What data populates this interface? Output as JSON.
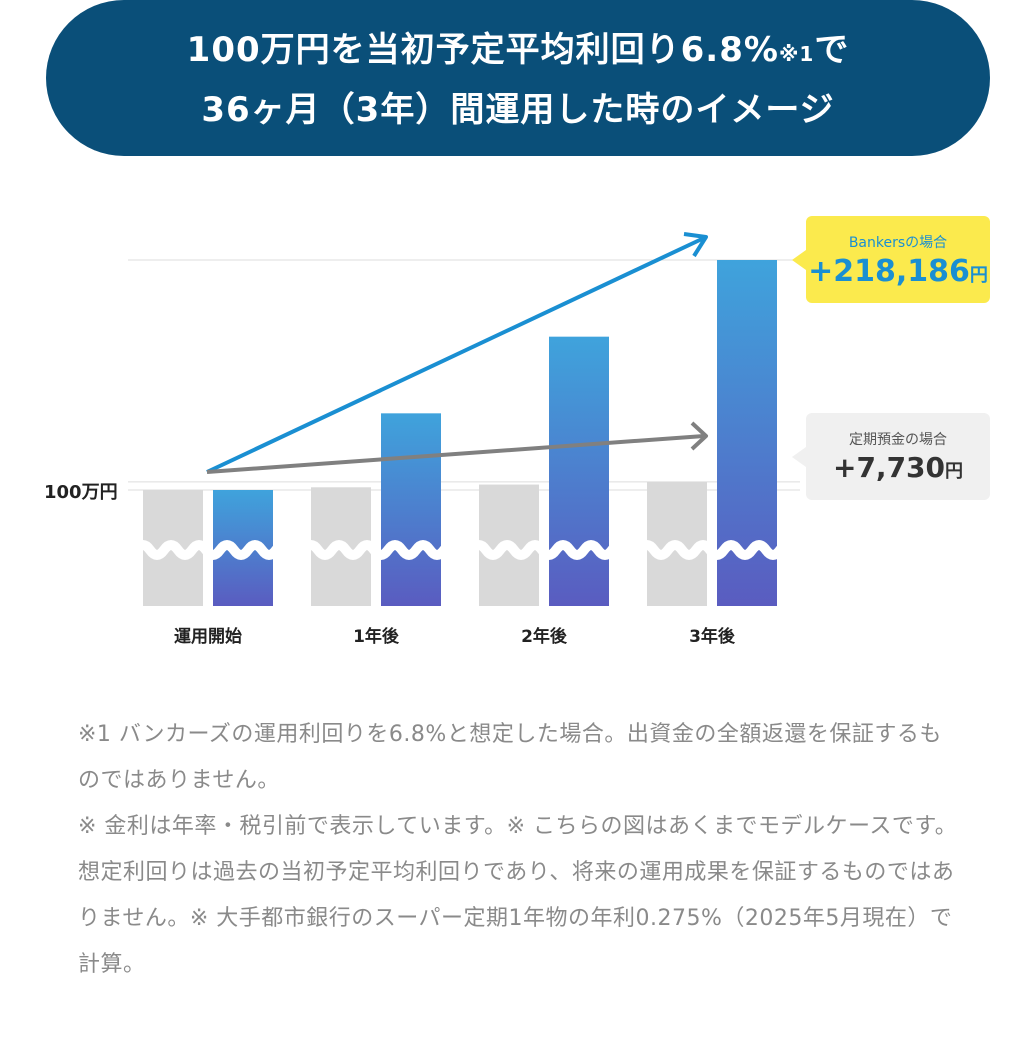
{
  "header": {
    "line1": "100万円を当初予定平均利回り6.8%",
    "line1_note": "※1",
    "line1_end": "で",
    "line2": "36ヶ月（3年）間運用した時のイメージ"
  },
  "chart_data": {
    "type": "bar",
    "categories": [
      "運用開始",
      "1年後",
      "2年後",
      "3年後"
    ],
    "series": [
      {
        "name": "定期預金",
        "values": [
          1000000,
          1002577,
          1005154,
          1007730
        ]
      },
      {
        "name": "Bankers",
        "values": [
          1000000,
          1072729,
          1145457,
          1218186
        ]
      }
    ],
    "y_reference_label": "100万円",
    "y_reference_value": 1000000,
    "axis_break": true,
    "colors": {
      "bankers_top": "#3fa3dc",
      "bankers_bottom": "#5a5cc0",
      "teiki": "#d9d9d9",
      "bankers_arrow": "#1a8fd2",
      "teiki_arrow": "#808080",
      "gridline": "#dddddd"
    }
  },
  "callouts": {
    "bankers": {
      "label": "Bankersの場合",
      "value": "+218,186",
      "unit": "円"
    },
    "teiki": {
      "label": "定期預金の場合",
      "value": "+7,730",
      "unit": "円"
    }
  },
  "notes": {
    "p1": "※1 バンカーズの運用利回りを6.8%と想定した場合。出資金の全額返還を保証するものではありません。",
    "p2": "※ 金利は年率・税引前で表示しています。※ こちらの図はあくまでモデルケースです。想定利回りは過去の当初予定平均利回りであり、将来の運用成果を保証するものではありません。※ 大手都市銀行のスーパー定期1年物の年利0.275%（2025年5月現在）で計算。"
  }
}
